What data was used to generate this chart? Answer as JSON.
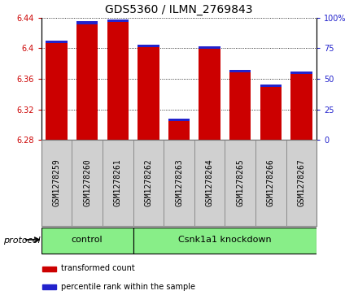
{
  "title": "GDS5360 / ILMN_2769843",
  "samples": [
    "GSM1278259",
    "GSM1278260",
    "GSM1278261",
    "GSM1278262",
    "GSM1278263",
    "GSM1278264",
    "GSM1278265",
    "GSM1278266",
    "GSM1278267"
  ],
  "red_values": [
    6.41,
    6.435,
    6.438,
    6.405,
    6.308,
    6.403,
    6.372,
    6.353,
    6.37
  ],
  "ylim_left": [
    6.28,
    6.44
  ],
  "ylim_right": [
    0,
    100
  ],
  "yticks_left": [
    6.28,
    6.32,
    6.36,
    6.4,
    6.44
  ],
  "yticks_right": [
    0,
    25,
    50,
    75,
    100
  ],
  "ytick_labels_right": [
    "0",
    "25",
    "50",
    "75",
    "100%"
  ],
  "bar_color_red": "#cc0000",
  "bar_color_blue": "#2222cc",
  "group1_label": "control",
  "group2_label": "Csnk1a1 knockdown",
  "group1_count": 3,
  "group2_count": 6,
  "group_color": "#88ee88",
  "protocol_label": "protocol",
  "legend_red": "transformed count",
  "legend_blue": "percentile rank within the sample",
  "base_value": 6.28,
  "bar_width": 0.7,
  "xtick_bg_color": "#d0d0d0",
  "title_fontsize": 10,
  "tick_fontsize": 7,
  "label_fontsize": 8
}
